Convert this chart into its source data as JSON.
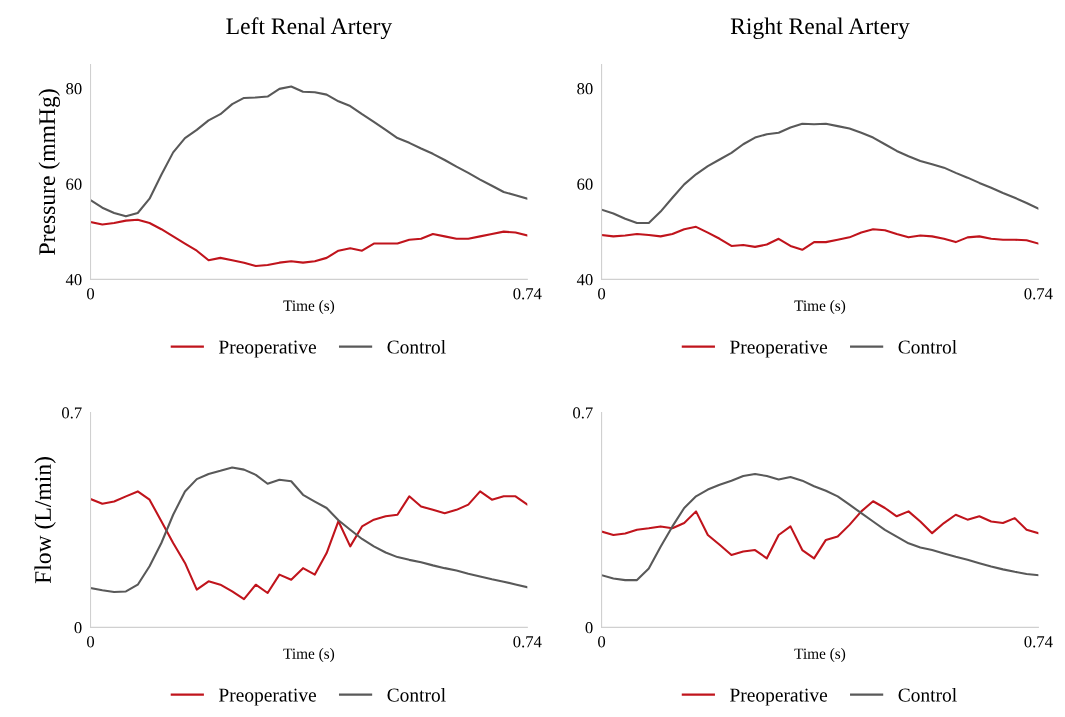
{
  "chart_data": [
    {
      "type": "line",
      "title": "Left Renal Artery",
      "xlabel": "Time (s)",
      "ylabel": "Pressure (mmHg)",
      "xlim": [
        0,
        0.74
      ],
      "ylim": [
        40,
        85
      ],
      "xticks": [
        0,
        0.74
      ],
      "yticks": [
        40,
        60,
        80
      ],
      "legend": "bottom",
      "grid": false,
      "x": [
        0,
        0.02,
        0.04,
        0.06,
        0.08,
        0.1,
        0.12,
        0.14,
        0.16,
        0.18,
        0.2,
        0.22,
        0.24,
        0.26,
        0.28,
        0.3,
        0.32,
        0.34,
        0.36,
        0.38,
        0.4,
        0.42,
        0.44,
        0.46,
        0.48,
        0.5,
        0.52,
        0.54,
        0.56,
        0.58,
        0.6,
        0.62,
        0.64,
        0.66,
        0.68,
        0.7,
        0.72,
        0.74
      ],
      "series": [
        {
          "name": "Preoperative",
          "color": "#c0141c",
          "values": [
            52.0,
            51.5,
            51.8,
            52.3,
            52.5,
            51.8,
            50.5,
            49.0,
            47.5,
            46.0,
            44.0,
            44.5,
            44.0,
            43.5,
            42.8,
            43.0,
            43.5,
            43.8,
            43.5,
            43.8,
            44.5,
            46.0,
            46.5,
            46.0,
            47.5,
            47.5,
            47.5,
            48.3,
            48.5,
            49.5,
            49.0,
            48.5,
            48.5,
            49.0,
            49.5,
            50.0,
            49.8,
            49.2
          ]
        },
        {
          "name": "Control",
          "color": "#595959",
          "values": [
            56.6,
            55.0,
            53.9,
            53.2,
            53.9,
            56.9,
            61.9,
            66.6,
            69.6,
            71.3,
            73.3,
            74.6,
            76.7,
            78.0,
            78.1,
            78.3,
            79.9,
            80.4,
            79.3,
            79.2,
            78.7,
            77.3,
            76.3,
            74.6,
            73.0,
            71.3,
            69.6,
            68.6,
            67.4,
            66.3,
            65.0,
            63.6,
            62.3,
            60.9,
            59.6,
            58.3,
            57.6,
            56.9
          ]
        }
      ]
    },
    {
      "type": "line",
      "title": "Right Renal Artery",
      "xlabel": "Time (s)",
      "xlim": [
        0,
        0.74
      ],
      "ylim": [
        40,
        85
      ],
      "xticks": [
        0,
        0.74
      ],
      "yticks": [
        40,
        60,
        80
      ],
      "legend": "bottom",
      "grid": false,
      "x": [
        0,
        0.02,
        0.04,
        0.06,
        0.08,
        0.1,
        0.12,
        0.14,
        0.16,
        0.18,
        0.2,
        0.22,
        0.24,
        0.26,
        0.28,
        0.3,
        0.32,
        0.34,
        0.36,
        0.38,
        0.4,
        0.42,
        0.44,
        0.46,
        0.48,
        0.5,
        0.52,
        0.54,
        0.56,
        0.58,
        0.6,
        0.62,
        0.64,
        0.66,
        0.68,
        0.7,
        0.72,
        0.74
      ],
      "series": [
        {
          "name": "Preoperative",
          "color": "#c0141c",
          "values": [
            49.3,
            49.0,
            49.2,
            49.5,
            49.3,
            49.0,
            49.5,
            50.5,
            51.0,
            49.8,
            48.5,
            47.0,
            47.2,
            46.8,
            47.3,
            48.5,
            47.0,
            46.2,
            47.8,
            47.8,
            48.3,
            48.8,
            49.8,
            50.5,
            50.3,
            49.5,
            48.8,
            49.2,
            49.0,
            48.5,
            47.8,
            48.8,
            49.0,
            48.5,
            48.3,
            48.3,
            48.2,
            47.5
          ]
        },
        {
          "name": "Control",
          "color": "#595959",
          "values": [
            54.6,
            53.8,
            52.7,
            51.8,
            51.8,
            54.2,
            57.1,
            59.9,
            62.0,
            63.7,
            65.1,
            66.5,
            68.3,
            69.7,
            70.4,
            70.7,
            71.8,
            72.6,
            72.5,
            72.6,
            72.1,
            71.6,
            70.7,
            69.7,
            68.3,
            66.9,
            65.8,
            64.8,
            64.1,
            63.4,
            62.3,
            61.3,
            60.2,
            59.2,
            58.1,
            57.1,
            56.0,
            54.8
          ]
        }
      ]
    },
    {
      "type": "line",
      "xlabel": "Time (s)",
      "ylabel": "Flow (L/min)",
      "xlim": [
        0,
        0.74
      ],
      "ylim": [
        0,
        0.7
      ],
      "xticks": [
        0,
        0.74
      ],
      "yticks": [
        0,
        0.7
      ],
      "legend": "bottom",
      "grid": false,
      "x": [
        0,
        0.02,
        0.04,
        0.06,
        0.08,
        0.1,
        0.12,
        0.14,
        0.16,
        0.18,
        0.2,
        0.22,
        0.24,
        0.26,
        0.28,
        0.3,
        0.32,
        0.34,
        0.36,
        0.38,
        0.4,
        0.42,
        0.44,
        0.46,
        0.48,
        0.5,
        0.52,
        0.54,
        0.56,
        0.58,
        0.6,
        0.62,
        0.64,
        0.66,
        0.68,
        0.7,
        0.72,
        0.74
      ],
      "series": [
        {
          "name": "Preoperative",
          "color": "#c0141c",
          "values": [
            0.418,
            0.403,
            0.41,
            0.427,
            0.443,
            0.416,
            0.346,
            0.275,
            0.21,
            0.123,
            0.15,
            0.139,
            0.117,
            0.092,
            0.139,
            0.112,
            0.172,
            0.155,
            0.193,
            0.172,
            0.242,
            0.346,
            0.264,
            0.329,
            0.351,
            0.362,
            0.367,
            0.427,
            0.394,
            0.383,
            0.372,
            0.383,
            0.4,
            0.443,
            0.416,
            0.427,
            0.427,
            0.4
          ]
        },
        {
          "name": "Control",
          "color": "#595959",
          "values": [
            0.128,
            0.121,
            0.115,
            0.117,
            0.139,
            0.199,
            0.275,
            0.367,
            0.443,
            0.483,
            0.5,
            0.51,
            0.521,
            0.514,
            0.497,
            0.468,
            0.481,
            0.476,
            0.432,
            0.41,
            0.389,
            0.349,
            0.318,
            0.288,
            0.264,
            0.244,
            0.229,
            0.22,
            0.212,
            0.202,
            0.193,
            0.185,
            0.175,
            0.166,
            0.157,
            0.149,
            0.14,
            0.131
          ]
        }
      ]
    },
    {
      "type": "line",
      "xlabel": "Time (s)",
      "xlim": [
        0,
        0.74
      ],
      "ylim": [
        0,
        0.7
      ],
      "xticks": [
        0,
        0.74
      ],
      "yticks": [
        0,
        0.7
      ],
      "legend": "bottom",
      "grid": false,
      "x": [
        0,
        0.02,
        0.04,
        0.06,
        0.08,
        0.1,
        0.12,
        0.14,
        0.16,
        0.18,
        0.2,
        0.22,
        0.24,
        0.26,
        0.28,
        0.3,
        0.32,
        0.34,
        0.36,
        0.38,
        0.4,
        0.42,
        0.44,
        0.46,
        0.48,
        0.5,
        0.52,
        0.54,
        0.56,
        0.58,
        0.6,
        0.62,
        0.64,
        0.66,
        0.68,
        0.7,
        0.72,
        0.74
      ],
      "series": [
        {
          "name": "Preoperative",
          "color": "#c0141c",
          "values": [
            0.312,
            0.301,
            0.306,
            0.318,
            0.323,
            0.329,
            0.323,
            0.34,
            0.378,
            0.301,
            0.269,
            0.236,
            0.247,
            0.252,
            0.225,
            0.301,
            0.329,
            0.252,
            0.225,
            0.285,
            0.296,
            0.334,
            0.378,
            0.411,
            0.389,
            0.362,
            0.378,
            0.345,
            0.307,
            0.34,
            0.367,
            0.351,
            0.362,
            0.345,
            0.34,
            0.356,
            0.318,
            0.307
          ]
        },
        {
          "name": "Control",
          "color": "#595959",
          "values": [
            0.17,
            0.159,
            0.154,
            0.154,
            0.192,
            0.263,
            0.329,
            0.389,
            0.427,
            0.449,
            0.465,
            0.478,
            0.493,
            0.5,
            0.493,
            0.482,
            0.49,
            0.478,
            0.46,
            0.445,
            0.427,
            0.4,
            0.372,
            0.345,
            0.318,
            0.296,
            0.274,
            0.26,
            0.252,
            0.241,
            0.23,
            0.22,
            0.209,
            0.198,
            0.189,
            0.181,
            0.174,
            0.17
          ]
        }
      ]
    }
  ]
}
